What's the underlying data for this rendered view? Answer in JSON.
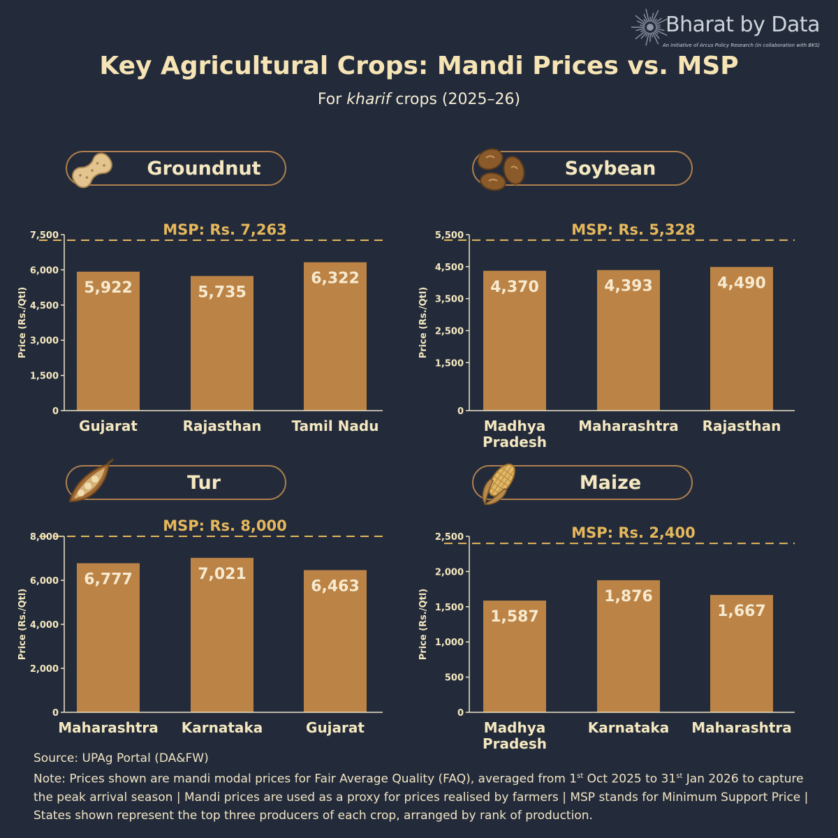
{
  "brand": {
    "name": "Bharat by Data",
    "tagline": "An initiative of Arcus Policy Research  (in collaboration with BKS)"
  },
  "title": "Key Agricultural Crops: Mandi Prices vs. MSP",
  "subtitle_prefix": "For ",
  "subtitle_em": "kharif",
  "subtitle_suffix": " crops (2025–26)",
  "colors": {
    "background": "#232b3a",
    "bar": "#bb8345",
    "msp_line": "#e6b85c",
    "text": "#f5e8c0",
    "pill_border": "#b07f4e"
  },
  "chart_data": [
    {
      "type": "bar",
      "title": "Groundnut",
      "icon": "peanut-icon",
      "msp_label": "MSP: Rs. 7,263",
      "msp": 7263,
      "ylabel": "Price (Rs./Qtl)",
      "ylim": [
        0,
        7500
      ],
      "yticks": [
        0,
        1500,
        3000,
        4500,
        6000,
        7500
      ],
      "yticklabels": [
        "0",
        "1,500",
        "3,000",
        "4,500",
        "6,000",
        "7,500"
      ],
      "categories": [
        "Gujarat",
        "Rajasthan",
        "Tamil Nadu"
      ],
      "values": [
        5922,
        5735,
        6322
      ],
      "value_labels": [
        "5,922",
        "5,735",
        "6,322"
      ]
    },
    {
      "type": "bar",
      "title": "Soybean",
      "icon": "soybean-icon",
      "msp_label": "MSP: Rs. 5,328",
      "msp": 5328,
      "ylabel": "Price (Rs./Qtl)",
      "ylim": [
        0,
        5500
      ],
      "yticks": [
        0,
        1500,
        2500,
        3500,
        4500,
        5500
      ],
      "yticklabels": [
        "0",
        "1,500",
        "2,500",
        "3,500",
        "4,500",
        "5,500"
      ],
      "categories": [
        "Madhya\nPradesh",
        "Maharashtra",
        "Rajasthan"
      ],
      "values": [
        4370,
        4393,
        4490
      ],
      "value_labels": [
        "4,370",
        "4,393",
        "4,490"
      ]
    },
    {
      "type": "bar",
      "title": "Tur",
      "icon": "pea-pod-icon",
      "msp_label": "MSP: Rs. 8,000",
      "msp": 8000,
      "ylabel": "Price (Rs./Qtl)",
      "ylim": [
        0,
        8000
      ],
      "yticks": [
        0,
        2000,
        4000,
        6000,
        8000
      ],
      "yticklabels": [
        "0",
        "2,000",
        "4,000",
        "6,000",
        "8,000"
      ],
      "categories": [
        "Maharashtra",
        "Karnataka",
        "Gujarat"
      ],
      "values": [
        6777,
        7021,
        6463
      ],
      "value_labels": [
        "6,777",
        "7,021",
        "6,463"
      ]
    },
    {
      "type": "bar",
      "title": "Maize",
      "icon": "corn-icon",
      "msp_label": "MSP: Rs. 2,400",
      "msp": 2400,
      "ylabel": "Price (Rs./Qtl)",
      "ylim": [
        0,
        2500
      ],
      "yticks": [
        0,
        500,
        1000,
        1500,
        2000,
        2500
      ],
      "yticklabels": [
        "0",
        "500",
        "1,000",
        "1,500",
        "2,000",
        "2,500"
      ],
      "categories": [
        "Madhya\nPradesh",
        "Karnataka",
        "Maharashtra"
      ],
      "values": [
        1587,
        1876,
        1667
      ],
      "value_labels": [
        "1,587",
        "1,876",
        "1,667"
      ]
    }
  ],
  "footer": {
    "source": "Source: UPAg Portal (DA&FW)",
    "note_a": "Note: Prices shown are mandi modal prices for Fair Average Quality (FAQ), averaged from 1",
    "sup_a": "st",
    "note_b": " Oct 2025 to 31",
    "sup_b": "st",
    "note_c": " Jan 2026 to capture the peak arrival season  |  Mandi prices are used as a proxy for prices realised by farmers  |  MSP stands for Minimum Support Price  |  States shown represent the top three producers of each crop, arranged by rank of production."
  }
}
